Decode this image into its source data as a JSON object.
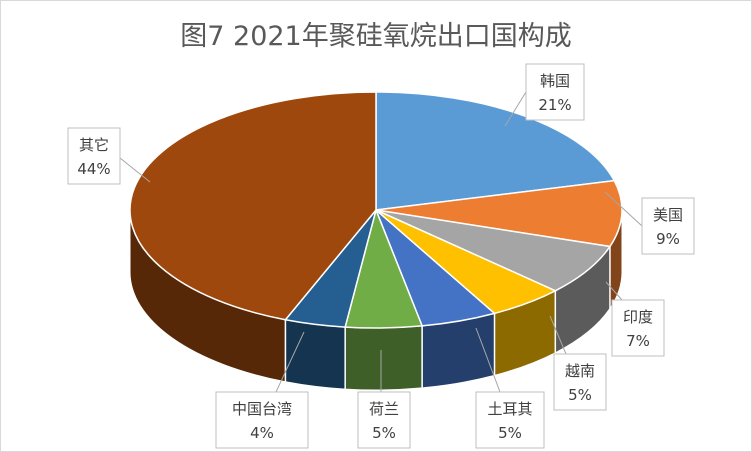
{
  "chart_data": {
    "type": "pie",
    "title": "图7 2021年聚硅氧烷出口国构成",
    "slices": [
      {
        "label": "韩国",
        "value": 21,
        "value_label": "21%",
        "color": "#5b9bd5"
      },
      {
        "label": "美国",
        "value": 9,
        "value_label": "9%",
        "color": "#ed7d31"
      },
      {
        "label": "印度",
        "value": 7,
        "value_label": "7%",
        "color": "#a5a5a5"
      },
      {
        "label": "越南",
        "value": 5,
        "value_label": "5%",
        "color": "#ffc000"
      },
      {
        "label": "土耳其",
        "value": 5,
        "value_label": "5%",
        "color": "#4472c4"
      },
      {
        "label": "荷兰",
        "value": 5,
        "value_label": "5%",
        "color": "#70ad47"
      },
      {
        "label": "中国台湾",
        "value": 4,
        "value_label": "4%",
        "color": "#255e91"
      },
      {
        "label": "其它",
        "value": 44,
        "value_label": "44%",
        "color": "#9e480e"
      }
    ],
    "legend": "none",
    "style": "3d-pie"
  }
}
